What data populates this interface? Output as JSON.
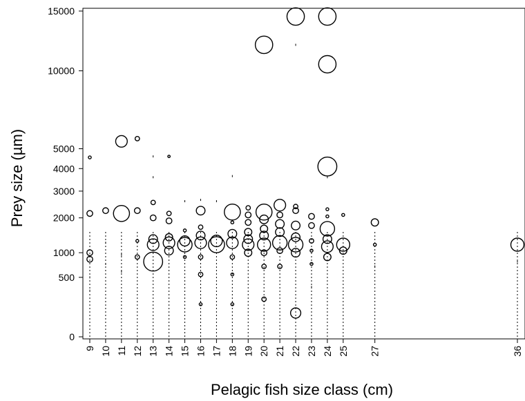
{
  "chart_data": {
    "type": "scatter",
    "title": "",
    "xlabel": "Pelagic fish size class (cm)",
    "ylabel": "Prey size (µm)",
    "x_ticks": [
      9,
      10,
      11,
      12,
      13,
      14,
      15,
      16,
      17,
      18,
      19,
      20,
      21,
      22,
      23,
      24,
      25,
      27,
      36
    ],
    "y_ticks": [
      0,
      500,
      1000,
      2000,
      3000,
      4000,
      5000,
      10000,
      15000
    ],
    "y_scale": "sqrt",
    "xlim": [
      8.7,
      36.3
    ],
    "ylim": [
      0,
      15200
    ],
    "grid": false,
    "legend": "none",
    "marker": "open circle, size proportional to frequency",
    "points": [
      {
        "x": 9,
        "y": 4550,
        "s": 1
      },
      {
        "x": 9,
        "y": 2150,
        "s": 2
      },
      {
        "x": 9,
        "y": 1000,
        "s": 2
      },
      {
        "x": 9,
        "y": 850,
        "s": 2
      },
      {
        "x": 9,
        "y": 500,
        "s": 0.3
      },
      {
        "x": 9,
        "y": 300,
        "s": 0.3
      },
      {
        "x": 10,
        "y": 2250,
        "s": 2
      },
      {
        "x": 10,
        "y": 1250,
        "s": 0.3
      },
      {
        "x": 10,
        "y": 750,
        "s": 0.5
      },
      {
        "x": 11,
        "y": 5400,
        "s": 4
      },
      {
        "x": 11,
        "y": 2150,
        "s": 5.5
      },
      {
        "x": 11,
        "y": 950,
        "s": 0.3
      },
      {
        "x": 11,
        "y": 600,
        "s": 0.3
      },
      {
        "x": 12,
        "y": 5550,
        "s": 1.5
      },
      {
        "x": 12,
        "y": 2250,
        "s": 2
      },
      {
        "x": 12,
        "y": 1300,
        "s": 1
      },
      {
        "x": 12,
        "y": 900,
        "s": 1.5
      },
      {
        "x": 13,
        "y": 4600,
        "s": 0.5
      },
      {
        "x": 13,
        "y": 3600,
        "s": 0.3
      },
      {
        "x": 13,
        "y": 2550,
        "s": 1.5
      },
      {
        "x": 13,
        "y": 2000,
        "s": 2
      },
      {
        "x": 13,
        "y": 1350,
        "s": 3
      },
      {
        "x": 13,
        "y": 1200,
        "s": 4
      },
      {
        "x": 13,
        "y": 800,
        "s": 6.5
      },
      {
        "x": 14,
        "y": 4600,
        "s": 0.8
      },
      {
        "x": 14,
        "y": 2150,
        "s": 1.5
      },
      {
        "x": 14,
        "y": 1900,
        "s": 2
      },
      {
        "x": 14,
        "y": 1400,
        "s": 2.5
      },
      {
        "x": 14,
        "y": 1250,
        "s": 4
      },
      {
        "x": 14,
        "y": 1050,
        "s": 3
      },
      {
        "x": 15,
        "y": 2600,
        "s": 0.3
      },
      {
        "x": 15,
        "y": 1600,
        "s": 1
      },
      {
        "x": 15,
        "y": 1300,
        "s": 3.5
      },
      {
        "x": 15,
        "y": 1200,
        "s": 5
      },
      {
        "x": 15,
        "y": 900,
        "s": 1
      },
      {
        "x": 16,
        "y": 2650,
        "s": 0.3
      },
      {
        "x": 16,
        "y": 2250,
        "s": 3
      },
      {
        "x": 16,
        "y": 1700,
        "s": 1.5
      },
      {
        "x": 16,
        "y": 1450,
        "s": 3
      },
      {
        "x": 16,
        "y": 1250,
        "s": 4
      },
      {
        "x": 16,
        "y": 900,
        "s": 1.5
      },
      {
        "x": 16,
        "y": 550,
        "s": 1.5
      },
      {
        "x": 16,
        "y": 150,
        "s": 1
      },
      {
        "x": 17,
        "y": 2600,
        "s": 0.3
      },
      {
        "x": 17,
        "y": 1300,
        "s": 4
      },
      {
        "x": 17,
        "y": 1200,
        "s": 5.5
      },
      {
        "x": 18,
        "y": 3650,
        "s": 0.3
      },
      {
        "x": 18,
        "y": 2200,
        "s": 5.5
      },
      {
        "x": 18,
        "y": 1850,
        "s": 1
      },
      {
        "x": 18,
        "y": 1500,
        "s": 3
      },
      {
        "x": 18,
        "y": 1250,
        "s": 4
      },
      {
        "x": 18,
        "y": 900,
        "s": 1.5
      },
      {
        "x": 18,
        "y": 550,
        "s": 1
      },
      {
        "x": 18,
        "y": 150,
        "s": 1
      },
      {
        "x": 19,
        "y": 2350,
        "s": 1.5
      },
      {
        "x": 19,
        "y": 2100,
        "s": 2
      },
      {
        "x": 19,
        "y": 1850,
        "s": 2
      },
      {
        "x": 19,
        "y": 1550,
        "s": 2.5
      },
      {
        "x": 19,
        "y": 1350,
        "s": 3
      },
      {
        "x": 19,
        "y": 1200,
        "s": 4
      },
      {
        "x": 19,
        "y": 1000,
        "s": 2.5
      },
      {
        "x": 20,
        "y": 12050,
        "s": 6
      },
      {
        "x": 20,
        "y": 2200,
        "s": 5.5
      },
      {
        "x": 20,
        "y": 1950,
        "s": 3
      },
      {
        "x": 20,
        "y": 1650,
        "s": 2.5
      },
      {
        "x": 20,
        "y": 1450,
        "s": 3
      },
      {
        "x": 20,
        "y": 1200,
        "s": 4.5
      },
      {
        "x": 20,
        "y": 1000,
        "s": 2
      },
      {
        "x": 20,
        "y": 700,
        "s": 1.5
      },
      {
        "x": 20,
        "y": 200,
        "s": 1.5
      },
      {
        "x": 21,
        "y": 2450,
        "s": 4
      },
      {
        "x": 21,
        "y": 2100,
        "s": 2
      },
      {
        "x": 21,
        "y": 1800,
        "s": 3
      },
      {
        "x": 21,
        "y": 1550,
        "s": 3
      },
      {
        "x": 21,
        "y": 1250,
        "s": 5
      },
      {
        "x": 21,
        "y": 1050,
        "s": 2
      },
      {
        "x": 21,
        "y": 700,
        "s": 1.5
      },
      {
        "x": 22,
        "y": 14500,
        "s": 6
      },
      {
        "x": 22,
        "y": 12050,
        "s": 0.3
      },
      {
        "x": 22,
        "y": 2400,
        "s": 1.5
      },
      {
        "x": 22,
        "y": 2250,
        "s": 2
      },
      {
        "x": 22,
        "y": 1750,
        "s": 3
      },
      {
        "x": 22,
        "y": 1400,
        "s": 3
      },
      {
        "x": 22,
        "y": 1200,
        "s": 5
      },
      {
        "x": 22,
        "y": 1000,
        "s": 3
      },
      {
        "x": 22,
        "y": 80,
        "s": 3.5
      },
      {
        "x": 23,
        "y": 2050,
        "s": 2
      },
      {
        "x": 23,
        "y": 1750,
        "s": 2
      },
      {
        "x": 23,
        "y": 1300,
        "s": 1.5
      },
      {
        "x": 23,
        "y": 1050,
        "s": 1
      },
      {
        "x": 23,
        "y": 750,
        "s": 1
      },
      {
        "x": 23,
        "y": 350,
        "s": 0.3
      },
      {
        "x": 24,
        "y": 14500,
        "s": 6
      },
      {
        "x": 24,
        "y": 10500,
        "s": 6
      },
      {
        "x": 24,
        "y": 4100,
        "s": 6.5
      },
      {
        "x": 24,
        "y": 3600,
        "s": 0.3
      },
      {
        "x": 24,
        "y": 2300,
        "s": 1
      },
      {
        "x": 24,
        "y": 2050,
        "s": 1
      },
      {
        "x": 24,
        "y": 1650,
        "s": 5
      },
      {
        "x": 24,
        "y": 1350,
        "s": 3
      },
      {
        "x": 24,
        "y": 1150,
        "s": 4
      },
      {
        "x": 24,
        "y": 900,
        "s": 2.5
      },
      {
        "x": 25,
        "y": 2100,
        "s": 1
      },
      {
        "x": 25,
        "y": 1200,
        "s": 4.5
      },
      {
        "x": 25,
        "y": 1050,
        "s": 2.5
      },
      {
        "x": 27,
        "y": 1850,
        "s": 2.5
      },
      {
        "x": 27,
        "y": 1200,
        "s": 1
      },
      {
        "x": 27,
        "y": 700,
        "s": 0.3
      },
      {
        "x": 36,
        "y": 1200,
        "s": 4.5
      },
      {
        "x": 36,
        "y": 800,
        "s": 0.5
      }
    ]
  }
}
